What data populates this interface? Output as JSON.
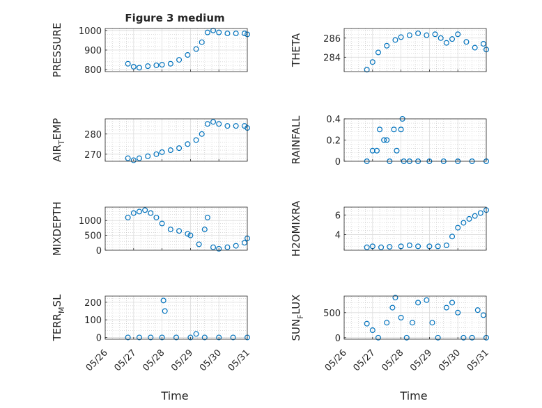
{
  "figure": {
    "title": "Figure 3 medium",
    "xlabel": "Time"
  },
  "colors": {
    "marker": "#0072BD",
    "axis": "#262626",
    "grid": "#b8b8b8"
  },
  "chart_data": [
    {
      "type": "scatter",
      "ylabel": "PRESSURE",
      "ylabel_sub": "",
      "x": [
        "05/26.8",
        "05/27.0",
        "05/27.2",
        "05/27.5",
        "05/27.8",
        "05/28.0",
        "05/28.3",
        "05/28.6",
        "05/28.9",
        "05/29.2",
        "05/29.4",
        "05/29.6",
        "05/29.8",
        "05/30.0",
        "05/30.3",
        "05/30.6",
        "05/30.9",
        "05/31.0"
      ],
      "y": [
        830,
        815,
        810,
        818,
        822,
        825,
        830,
        850,
        875,
        905,
        940,
        990,
        1000,
        990,
        985,
        985,
        985,
        980
      ],
      "xlim": [
        "05/26",
        "05/31"
      ],
      "ylim": [
        790,
        1010
      ],
      "yticks": [
        800,
        900,
        1000
      ],
      "xticks": [
        "05/26",
        "05/27",
        "05/28",
        "05/29",
        "05/30",
        "05/31"
      ],
      "grid": true
    },
    {
      "type": "scatter",
      "ylabel": "THETA",
      "ylabel_sub": "",
      "x": [
        "05/26.8",
        "05/27.0",
        "05/27.2",
        "05/27.5",
        "05/27.8",
        "05/28.0",
        "05/28.3",
        "05/28.6",
        "05/28.9",
        "05/29.2",
        "05/29.4",
        "05/29.6",
        "05/29.8",
        "05/30.0",
        "05/30.3",
        "05/30.6",
        "05/30.9",
        "05/31.0"
      ],
      "y": [
        282.7,
        283.5,
        284.5,
        285.2,
        285.8,
        286.1,
        286.3,
        286.5,
        286.3,
        286.4,
        286.0,
        285.5,
        285.9,
        286.4,
        285.6,
        285.0,
        285.4,
        284.8
      ],
      "xlim": [
        "05/26",
        "05/31"
      ],
      "ylim": [
        282.5,
        287.0
      ],
      "yticks": [
        284,
        286
      ],
      "xticks": [
        "05/26",
        "05/27",
        "05/28",
        "05/29",
        "05/30",
        "05/31"
      ],
      "grid": true
    },
    {
      "type": "scatter",
      "ylabel": "AIR",
      "ylabel_sub": "T",
      "ylabel_rest": "EMP",
      "x": [
        "05/26.8",
        "05/27.0",
        "05/27.2",
        "05/27.5",
        "05/27.8",
        "05/28.0",
        "05/28.3",
        "05/28.6",
        "05/28.9",
        "05/29.2",
        "05/29.4",
        "05/29.6",
        "05/29.8",
        "05/30.0",
        "05/30.3",
        "05/30.6",
        "05/30.9",
        "05/31.0"
      ],
      "y": [
        268,
        267,
        268,
        269,
        270,
        271,
        272,
        273,
        275,
        277,
        280,
        285,
        286,
        285,
        284,
        284,
        284,
        283
      ],
      "xlim": [
        "05/26",
        "05/31"
      ],
      "ylim": [
        266.5,
        287.5
      ],
      "yticks": [
        270,
        280
      ],
      "xticks": [
        "05/26",
        "05/27",
        "05/28",
        "05/29",
        "05/30",
        "05/31"
      ],
      "grid": true
    },
    {
      "type": "scatter",
      "ylabel": "RAINFALL",
      "ylabel_sub": "",
      "x": [
        "05/26.8",
        "05/27.0",
        "05/27.15",
        "05/27.25",
        "05/27.4",
        "05/27.5",
        "05/27.6",
        "05/27.75",
        "05/27.85",
        "05/28.0",
        "05/28.05",
        "05/28.1",
        "05/28.3",
        "05/28.6",
        "05/29.0",
        "05/29.5",
        "05/30.0",
        "05/30.5",
        "05/31.0"
      ],
      "y": [
        0,
        0.1,
        0.1,
        0.3,
        0.2,
        0.2,
        0,
        0.3,
        0.1,
        0.3,
        0.4,
        0,
        0,
        0,
        0,
        0,
        0,
        0,
        0
      ],
      "xlim": [
        "05/26",
        "05/31"
      ],
      "ylim": [
        0,
        0.4
      ],
      "yticks": [
        0,
        0.2,
        0.4
      ],
      "xticks": [
        "05/26",
        "05/27",
        "05/28",
        "05/29",
        "05/30",
        "05/31"
      ],
      "grid": true
    },
    {
      "type": "scatter",
      "ylabel": "MIXDEPTH",
      "ylabel_sub": "",
      "x": [
        "05/26.8",
        "05/27.0",
        "05/27.2",
        "05/27.4",
        "05/27.6",
        "05/27.8",
        "05/28.0",
        "05/28.3",
        "05/28.6",
        "05/28.9",
        "05/29.0",
        "05/29.3",
        "05/29.5",
        "05/29.6",
        "05/29.8",
        "05/30.0",
        "05/30.3",
        "05/30.6",
        "05/30.9",
        "05/31.0"
      ],
      "y": [
        1100,
        1250,
        1300,
        1350,
        1250,
        1100,
        900,
        700,
        650,
        550,
        500,
        200,
        700,
        1100,
        100,
        50,
        100,
        150,
        250,
        400
      ],
      "xlim": [
        "05/26",
        "05/31"
      ],
      "ylim": [
        0,
        1450
      ],
      "yticks": [
        0,
        500,
        1000
      ],
      "xticks": [
        "05/26",
        "05/27",
        "05/28",
        "05/29",
        "05/30",
        "05/31"
      ],
      "grid": true
    },
    {
      "type": "scatter",
      "ylabel": "H2OMIXRA",
      "ylabel_sub": "",
      "x": [
        "05/26.8",
        "05/27.0",
        "05/27.3",
        "05/27.6",
        "05/28.0",
        "05/28.3",
        "05/28.6",
        "05/29.0",
        "05/29.3",
        "05/29.6",
        "05/29.8",
        "05/30.0",
        "05/30.2",
        "05/30.4",
        "05/30.6",
        "05/30.8",
        "05/31.0"
      ],
      "y": [
        2.7,
        2.8,
        2.7,
        2.75,
        2.8,
        2.9,
        2.8,
        2.8,
        2.8,
        2.9,
        3.8,
        4.7,
        5.2,
        5.6,
        5.9,
        6.2,
        6.5
      ],
      "xlim": [
        "05/26",
        "05/31"
      ],
      "ylim": [
        2.4,
        6.8
      ],
      "yticks": [
        4,
        6
      ],
      "xticks": [
        "05/26",
        "05/27",
        "05/28",
        "05/29",
        "05/30",
        "05/31"
      ],
      "grid": true
    },
    {
      "type": "scatter",
      "ylabel": "TERR",
      "ylabel_sub": "M",
      "ylabel_rest": "SL",
      "x": [
        "05/26.8",
        "05/27.2",
        "05/27.6",
        "05/28.0",
        "05/28.05",
        "05/28.1",
        "05/28.5",
        "05/29.0",
        "05/29.2",
        "05/29.5",
        "05/30.0",
        "05/30.5",
        "05/31.0"
      ],
      "y": [
        0,
        0,
        0,
        0,
        210,
        150,
        0,
        0,
        20,
        0,
        0,
        0,
        0
      ],
      "xlim": [
        "05/26",
        "05/31"
      ],
      "ylim": [
        -10,
        235
      ],
      "yticks": [
        0,
        100,
        200
      ],
      "xticks": [
        "05/26",
        "05/27",
        "05/28",
        "05/29",
        "05/30",
        "05/31"
      ],
      "grid": true
    },
    {
      "type": "scatter",
      "ylabel": "SUN",
      "ylabel_sub": "F",
      "ylabel_rest": "LUX",
      "x": [
        "05/26.8",
        "05/27.0",
        "05/27.2",
        "05/27.5",
        "05/27.7",
        "05/27.8",
        "05/28.0",
        "05/28.2",
        "05/28.4",
        "05/28.6",
        "05/28.9",
        "05/29.1",
        "05/29.3",
        "05/29.6",
        "05/29.8",
        "05/30.0",
        "05/30.2",
        "05/30.5",
        "05/30.7",
        "05/30.9",
        "05/31.0"
      ],
      "y": [
        280,
        150,
        0,
        300,
        600,
        800,
        400,
        0,
        300,
        700,
        750,
        300,
        0,
        600,
        700,
        500,
        0,
        0,
        550,
        450,
        0
      ],
      "xlim": [
        "05/26",
        "05/31"
      ],
      "ylim": [
        -30,
        830
      ],
      "yticks": [
        0,
        500
      ],
      "xticks": [
        "05/26",
        "05/27",
        "05/28",
        "05/29",
        "05/30",
        "05/31"
      ],
      "grid": true
    }
  ]
}
